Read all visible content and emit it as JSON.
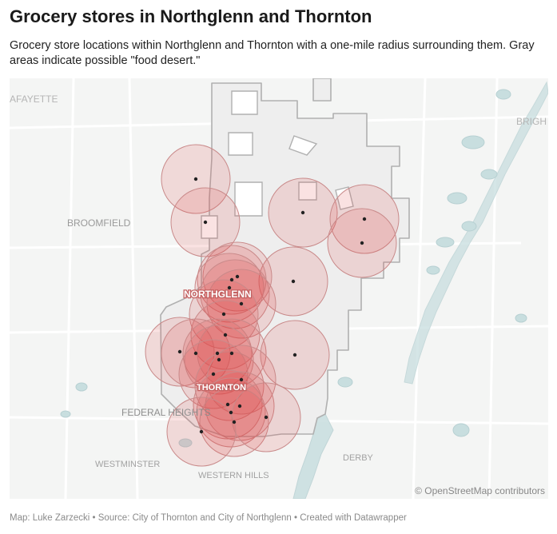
{
  "title": "Grocery stores in Northglenn and Thornton",
  "subtitle": "Grocery store locations within Northglenn and Thornton with a one-mile radius surrounding them. Gray areas indicate possible \"food desert.\"",
  "map": {
    "place_labels": {
      "lafayette": "AFAYETTE",
      "brighton": "BRIGH",
      "broomfield": "BROOMFIELD",
      "northglenn": "NORTHGLENN",
      "thornton": "THORNTON",
      "federal_heights": "FEDERAL HEIGHTS",
      "westminster": "WESTMINSTER",
      "western_hills": "WESTERN HILLS",
      "derby": "DERBY"
    },
    "attribution": "© OpenStreetMap contributors",
    "colors": {
      "radius_fill": "#e04a4a",
      "radius_stroke": "#c98a8a",
      "store_dot": "#222222",
      "city_fill": "#eeeeee",
      "city_stroke": "#b0b0b0",
      "water": "#c8dedf"
    },
    "store_count": 28
  },
  "footer": {
    "credit": "Map: Luke Zarzecki • Source: City of Thornton and City of Northglenn • Created with Datawrapper"
  }
}
